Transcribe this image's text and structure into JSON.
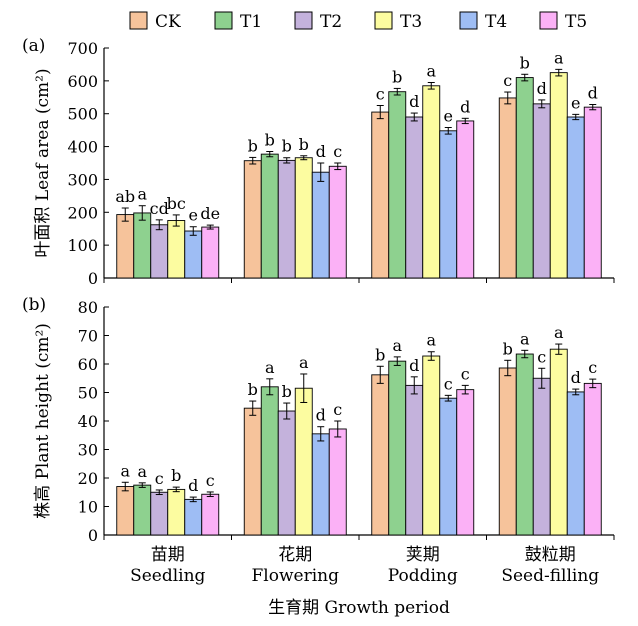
{
  "legend": {
    "placement": "top",
    "items": [
      {
        "label": "CK",
        "color": "#f6c39b"
      },
      {
        "label": "T1",
        "color": "#8ed18f"
      },
      {
        "label": "T2",
        "color": "#c4b2dc"
      },
      {
        "label": "T3",
        "color": "#fcfca0"
      },
      {
        "label": "T4",
        "color": "#9ebdf4"
      },
      {
        "label": "T5",
        "color": "#fbb1f6"
      }
    ]
  },
  "shared_xlabel": "生育期 Growth period",
  "stage_labels": {
    "cn": [
      "苗期",
      "花期",
      "荚期",
      "鼓粒期"
    ],
    "en": [
      "Seedling",
      "Flowering",
      "Podding",
      "Seed-filling"
    ]
  },
  "chart_data": [
    {
      "type": "bar",
      "panel_label": "(a)",
      "ylabel": "叶面积 Leaf area (cm²)",
      "ylim": [
        0,
        700
      ],
      "yticks": [
        0,
        100,
        200,
        300,
        400,
        500,
        600,
        700
      ],
      "grid": false,
      "categories": [
        "Seedling",
        "Flowering",
        "Podding",
        "Seed-filling"
      ],
      "series": [
        {
          "name": "CK",
          "values": [
            193,
            357,
            505,
            548
          ],
          "errors": [
            20,
            10,
            20,
            18
          ],
          "letters": [
            "ab",
            "b",
            "c",
            "c"
          ]
        },
        {
          "name": "T1",
          "values": [
            198,
            377,
            567,
            610
          ],
          "errors": [
            22,
            8,
            10,
            10
          ],
          "letters": [
            "a",
            "b",
            "b",
            "b"
          ]
        },
        {
          "name": "T2",
          "values": [
            162,
            358,
            490,
            530
          ],
          "errors": [
            15,
            8,
            12,
            12
          ],
          "letters": [
            "cd",
            "b",
            "d",
            "d"
          ]
        },
        {
          "name": "T3",
          "values": [
            175,
            366,
            585,
            625
          ],
          "errors": [
            17,
            6,
            10,
            10
          ],
          "letters": [
            "bc",
            "b",
            "a",
            "a"
          ]
        },
        {
          "name": "T4",
          "values": [
            143,
            322,
            448,
            490
          ],
          "errors": [
            13,
            28,
            10,
            8
          ],
          "letters": [
            "e",
            "d",
            "e",
            "e"
          ]
        },
        {
          "name": "T5",
          "values": [
            155,
            340,
            478,
            520
          ],
          "errors": [
            6,
            10,
            8,
            8
          ],
          "letters": [
            "de",
            "c",
            "d",
            "d"
          ]
        }
      ]
    },
    {
      "type": "bar",
      "panel_label": "(b)",
      "ylabel": "株高 Plant height (cm²)",
      "ylim": [
        0,
        80
      ],
      "yticks": [
        0,
        10,
        20,
        30,
        40,
        50,
        60,
        70,
        80
      ],
      "grid": false,
      "categories": [
        "Seedling",
        "Flowering",
        "Podding",
        "Seed-filling"
      ],
      "series": [
        {
          "name": "CK",
          "values": [
            17.0,
            44.5,
            56.2,
            58.6
          ],
          "errors": [
            1.5,
            2.5,
            3.0,
            2.7
          ],
          "letters": [
            "a",
            "b",
            "b",
            "b"
          ]
        },
        {
          "name": "T1",
          "values": [
            17.5,
            52.0,
            61.0,
            63.5
          ],
          "errors": [
            0.8,
            2.8,
            1.5,
            1.3
          ],
          "letters": [
            "a",
            "a",
            "a",
            "a"
          ]
        },
        {
          "name": "T2",
          "values": [
            15.0,
            43.5,
            52.5,
            55.0
          ],
          "errors": [
            0.8,
            2.8,
            3.0,
            3.5
          ],
          "letters": [
            "c",
            "b",
            "d",
            "c"
          ]
        },
        {
          "name": "T3",
          "values": [
            16.0,
            51.5,
            62.8,
            65.2
          ],
          "errors": [
            0.8,
            5.0,
            1.5,
            1.8
          ],
          "letters": [
            "b",
            "a",
            "a",
            "a"
          ]
        },
        {
          "name": "T4",
          "values": [
            12.5,
            35.5,
            48.0,
            50.2
          ],
          "errors": [
            0.8,
            2.5,
            1.0,
            1.0
          ],
          "letters": [
            "d",
            "d",
            "c",
            "d"
          ]
        },
        {
          "name": "T5",
          "values": [
            14.3,
            37.2,
            51.0,
            53.2
          ],
          "errors": [
            0.8,
            2.8,
            1.5,
            1.5
          ],
          "letters": [
            "c",
            "c",
            "c",
            "c"
          ]
        }
      ]
    }
  ]
}
